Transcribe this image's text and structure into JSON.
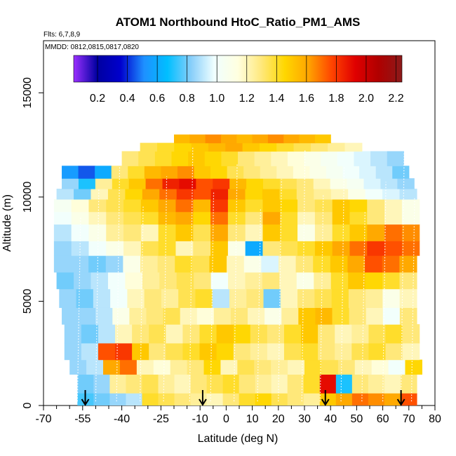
{
  "chart_data": {
    "type": "heatmap",
    "title": "ATOM1 Northbound HtoC_Ratio_PM1_AMS",
    "flights_label": "Flts: 6,7,8,9",
    "mmdd_label": "MMDD: 0812,0815,0817,0820",
    "xlabel": "Latitude (deg N)",
    "ylabel": "Altitude (m)",
    "xlim": [
      -70,
      80
    ],
    "ylim": [
      0,
      17500
    ],
    "x_ticks": [
      -70,
      -55,
      -40,
      -25,
      -10,
      0,
      10,
      20,
      30,
      40,
      50,
      60,
      70,
      80
    ],
    "x_minor_ticks": [
      -65,
      -60,
      -50,
      -45,
      -35,
      -30,
      -20,
      -15,
      -5,
      5,
      15,
      25,
      35,
      45,
      55,
      65,
      75
    ],
    "y_ticks": [
      0,
      5000,
      10000,
      15000
    ],
    "colorbar": {
      "range": [
        0.04,
        2.24
      ],
      "ticks": [
        0.2,
        0.4,
        0.6,
        0.8,
        1.0,
        1.2,
        1.4,
        1.6,
        1.8,
        2.0,
        2.2
      ],
      "tick_labels": [
        "0.2",
        "0.4",
        "0.6",
        "0.8",
        "1.0",
        "1.2",
        "1.4",
        "1.6",
        "1.8",
        "2.0",
        "2.2"
      ],
      "colors": [
        "#9b30ff",
        "#0000a0",
        "#0000cd",
        "#1e90ff",
        "#00bfff",
        "#87cefa",
        "#f0ffff",
        "#ffffe0",
        "#ffe87c",
        "#ffd700",
        "#ffa500",
        "#ff4500",
        "#e00000",
        "#b00000",
        "#8b1a1a"
      ]
    },
    "arrows_latitude": [
      -54,
      -9,
      38,
      67
    ],
    "colors": {
      "profile_line": "#ffffff",
      "arrow": "#000000",
      "background": "#ffffff"
    },
    "rows": [
      {
        "alt": [
          0,
          600
        ],
        "lat": [
          -57,
          73
        ],
        "values": [
          0.75,
          0.8,
          0.85,
          0.9,
          1.4,
          1.35,
          1.3,
          1.25,
          1.2,
          1.3,
          1.4,
          1.45,
          1.35,
          1.3,
          1.25,
          1.5,
          1.6,
          1.7,
          1.65,
          1.6,
          1.75
        ]
      },
      {
        "alt": [
          600,
          1500
        ],
        "lat": [
          -57,
          73
        ],
        "values": [
          0.8,
          0.85,
          1.25,
          1.3,
          1.35,
          1.25,
          1.2,
          1.3,
          1.35,
          1.4,
          1.3,
          1.25,
          1.2,
          1.3,
          1.4,
          1.9,
          0.7,
          1.3,
          1.25,
          1.2,
          1.3
        ]
      },
      {
        "alt": [
          1500,
          2200
        ],
        "lat": [
          -60,
          75
        ],
        "values": [
          0.85,
          0.9,
          1.6,
          1.7,
          1.2,
          1.15,
          1.25,
          1.3,
          1.45,
          1.2,
          1.35,
          1.3,
          1.25,
          1.2,
          1.4,
          1.35,
          1.3,
          1.2,
          1.15,
          1.0,
          1.45
        ]
      },
      {
        "alt": [
          2200,
          3000
        ],
        "lat": [
          -62,
          74
        ],
        "values": [
          0.85,
          0.9,
          1.75,
          1.8,
          1.5,
          1.3,
          1.35,
          1.4,
          1.5,
          1.45,
          1.3,
          1.25,
          1.2,
          1.35,
          1.4,
          1.3,
          1.25,
          1.35,
          1.4,
          1.3,
          1.2
        ]
      },
      {
        "alt": [
          3000,
          3900
        ],
        "lat": [
          -62,
          74
        ],
        "values": [
          0.85,
          0.8,
          0.9,
          1.2,
          1.3,
          1.35,
          1.2,
          1.3,
          1.4,
          1.5,
          1.45,
          1.35,
          1.3,
          1.4,
          1.5,
          1.3,
          1.2,
          1.25,
          1.35,
          1.4,
          1.3
        ]
      },
      {
        "alt": [
          3900,
          4700
        ],
        "lat": [
          -63,
          73
        ],
        "values": [
          0.85,
          0.85,
          0.9,
          1.1,
          1.25,
          1.3,
          1.35,
          1.2,
          1.15,
          1.25,
          1.3,
          1.2,
          1.1,
          1.25,
          1.5,
          1.55,
          1.4,
          1.3,
          1.2,
          1.0,
          1.3
        ]
      },
      {
        "alt": [
          4700,
          5600
        ],
        "lat": [
          -64,
          73
        ],
        "values": [
          0.85,
          0.8,
          0.9,
          1.0,
          1.2,
          1.3,
          1.25,
          1.35,
          1.4,
          0.9,
          1.25,
          1.3,
          0.8,
          1.2,
          1.3,
          1.35,
          1.4,
          1.3,
          1.25,
          1.1,
          1.2
        ]
      },
      {
        "alt": [
          5600,
          6400
        ],
        "lat": [
          -65,
          73
        ],
        "values": [
          0.8,
          0.85,
          0.9,
          1.0,
          1.15,
          1.25,
          1.3,
          1.35,
          1.3,
          1.0,
          1.2,
          1.25,
          1.3,
          1.2,
          1.1,
          1.25,
          1.4,
          1.5,
          1.45,
          1.4,
          1.3
        ]
      },
      {
        "alt": [
          6400,
          7200
        ],
        "lat": [
          -66,
          73
        ],
        "values": [
          0.85,
          0.85,
          0.8,
          0.85,
          1.1,
          1.25,
          1.3,
          1.4,
          1.35,
          1.5,
          1.2,
          1.1,
          0.95,
          1.2,
          1.3,
          1.4,
          1.5,
          1.6,
          1.75,
          1.7,
          1.6
        ]
      },
      {
        "alt": [
          7200,
          7900
        ],
        "lat": [
          -66,
          74
        ],
        "values": [
          0.85,
          0.9,
          1.0,
          1.1,
          1.2,
          1.35,
          1.4,
          1.2,
          1.3,
          1.5,
          1.1,
          0.6,
          1.3,
          1.35,
          1.4,
          1.5,
          1.6,
          1.7,
          1.8,
          1.75,
          1.7
        ]
      },
      {
        "alt": [
          7900,
          8700
        ],
        "lat": [
          -66,
          74
        ],
        "values": [
          0.9,
          1.0,
          1.1,
          1.25,
          1.3,
          1.2,
          1.4,
          1.5,
          1.35,
          1.6,
          1.3,
          1.2,
          1.5,
          1.4,
          1.1,
          1.25,
          1.4,
          1.5,
          1.6,
          1.7,
          1.65
        ]
      },
      {
        "alt": [
          8700,
          9300
        ],
        "lat": [
          -66,
          74
        ],
        "values": [
          1.0,
          1.1,
          1.2,
          1.3,
          1.35,
          1.4,
          1.55,
          1.6,
          1.45,
          1.7,
          1.4,
          1.3,
          1.6,
          1.4,
          1.2,
          1.3,
          1.5,
          1.4,
          1.3,
          1.2,
          1.1
        ]
      },
      {
        "alt": [
          9300,
          9900
        ],
        "lat": [
          -66,
          74
        ],
        "values": [
          1.05,
          1.15,
          1.3,
          1.35,
          1.4,
          1.5,
          1.6,
          1.7,
          1.55,
          1.8,
          1.5,
          1.4,
          1.5,
          1.45,
          1.3,
          1.35,
          1.5,
          1.45,
          1.3,
          1.2,
          1.1
        ]
      },
      {
        "alt": [
          9900,
          10400
        ],
        "lat": [
          -65,
          73
        ],
        "values": [
          0.9,
          0.8,
          1.2,
          1.35,
          1.45,
          1.6,
          1.7,
          1.8,
          1.75,
          1.85,
          1.6,
          1.45,
          1.5,
          1.4,
          1.3,
          1.25,
          1.2,
          1.1,
          1.0,
          0.95,
          0.9
        ]
      },
      {
        "alt": [
          10400,
          10900
        ],
        "lat": [
          -63,
          72
        ],
        "values": [
          0.85,
          0.7,
          1.25,
          1.4,
          1.5,
          1.7,
          1.85,
          1.9,
          1.75,
          1.8,
          1.55,
          1.45,
          1.4,
          1.35,
          1.3,
          1.2,
          1.1,
          1.05,
          0.95,
          0.9,
          0.85
        ]
      },
      {
        "alt": [
          10900,
          11500
        ],
        "lat": [
          -63,
          70
        ],
        "values": [
          0.55,
          0.45,
          0.6,
          1.3,
          1.4,
          1.55,
          1.6,
          1.65,
          1.5,
          1.45,
          1.35,
          1.3,
          1.25,
          1.2,
          1.15,
          1.1,
          1.05,
          1.0,
          0.95,
          0.9,
          0.8
        ]
      },
      {
        "alt": [
          11500,
          12200
        ],
        "lat": [
          -40,
          68
        ],
        "values": [
          1.3,
          1.35,
          1.4,
          1.45,
          1.5,
          1.45,
          1.4,
          1.3,
          1.25,
          1.2,
          1.15,
          1.1,
          1.05,
          1.0,
          0.95,
          0.9,
          0.85
        ]
      },
      {
        "alt": [
          12200,
          12600
        ],
        "lat": [
          -33,
          52
        ],
        "values": [
          1.35,
          1.4,
          1.45,
          1.5,
          1.55,
          1.6,
          1.5,
          1.45,
          1.4,
          1.35,
          1.3,
          1.25,
          1.2
        ]
      },
      {
        "alt": [
          12600,
          13000
        ],
        "lat": [
          -20,
          40
        ],
        "values": [
          1.55,
          1.6,
          1.65,
          1.6,
          1.55,
          1.6,
          1.65,
          1.6,
          1.55,
          1.5
        ]
      }
    ]
  }
}
